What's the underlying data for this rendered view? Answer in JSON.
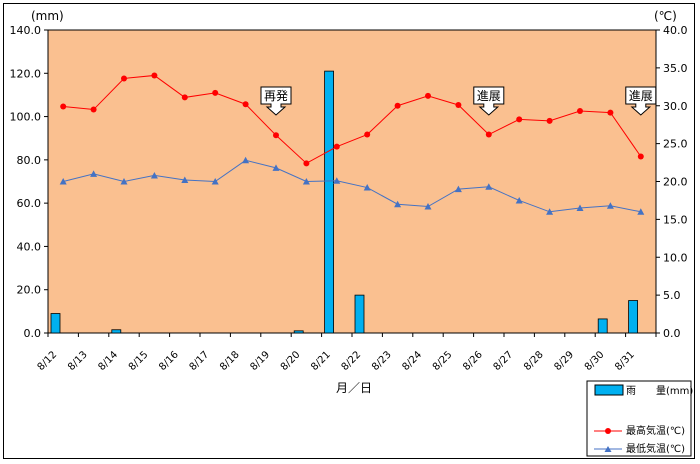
{
  "chart_data": {
    "type": "bar+line",
    "y_left_unit": "(mm)",
    "y_right_unit": "(℃)",
    "xlabel": "月／日",
    "y_left_ticks": [
      "0.0",
      "20.0",
      "40.0",
      "60.0",
      "80.0",
      "100.0",
      "120.0",
      "140.0"
    ],
    "y_right_ticks": [
      "0.0",
      "5.0",
      "10.0",
      "15.0",
      "20.0",
      "25.0",
      "30.0",
      "35.0",
      "40.0"
    ],
    "y_left_range": [
      0,
      140
    ],
    "y_right_range": [
      0,
      40
    ],
    "grid": false,
    "plot_color": "#FAC090",
    "categories": [
      "8/12",
      "8/13",
      "8/14",
      "8/15",
      "8/16",
      "8/17",
      "8/18",
      "8/19",
      "8/20",
      "8/21",
      "8/22",
      "8/23",
      "8/24",
      "8/25",
      "8/26",
      "8/27",
      "8/28",
      "8/29",
      "8/30",
      "8/31"
    ],
    "series": [
      {
        "name": "雨　　量(mm)",
        "type": "bar",
        "axis": "left",
        "color": "#00B0F0",
        "values": [
          9,
          0,
          1.5,
          0,
          0,
          0,
          0,
          0,
          1,
          121,
          17.5,
          0,
          0,
          0,
          0,
          0,
          0,
          0,
          6.5,
          15
        ]
      },
      {
        "name": "最高気温(℃)",
        "type": "line",
        "axis": "right",
        "color": "#FF0000",
        "marker": "circle",
        "values": [
          29.9,
          29.5,
          33.6,
          34.0,
          31.1,
          31.7,
          30.2,
          26.1,
          22.4,
          24.6,
          26.2,
          30.0,
          31.3,
          30.1,
          26.2,
          28.2,
          28.0,
          29.3,
          29.1,
          23.3
        ]
      },
      {
        "name": "最低気温(℃)",
        "type": "line",
        "axis": "right",
        "color": "#4472C4",
        "marker": "triangle",
        "values": [
          20.0,
          21.0,
          20.0,
          20.8,
          20.2,
          20.0,
          22.8,
          21.8,
          20.0,
          20.1,
          19.2,
          17.0,
          16.7,
          19.0,
          19.3,
          17.5,
          16.0,
          16.5,
          16.8,
          16.0
        ]
      }
    ],
    "annotations": [
      {
        "text": "再発",
        "category": "8/19"
      },
      {
        "text": "進展",
        "category": "8/26"
      },
      {
        "text": "進展",
        "category": "8/31"
      }
    ]
  }
}
